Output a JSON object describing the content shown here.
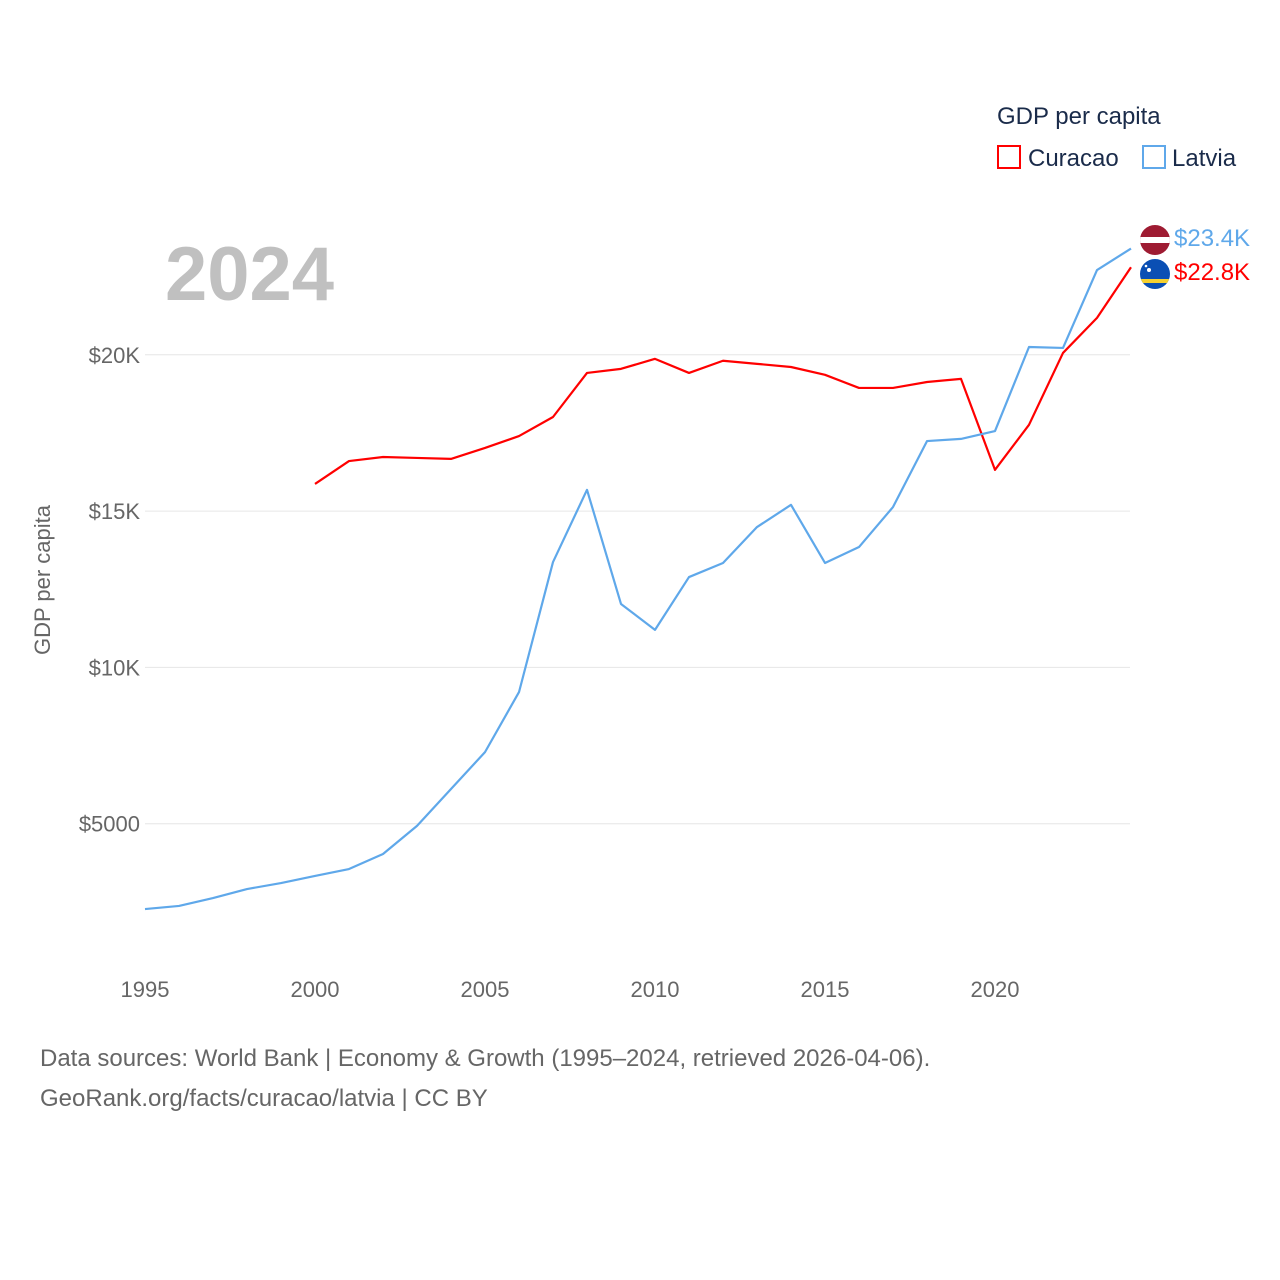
{
  "chart_data": {
    "type": "line",
    "year_label": "2024",
    "ylabel": "GDP per capita",
    "xlabel": "",
    "xlim": [
      1995,
      2024
    ],
    "ylim": [
      0,
      25000
    ],
    "grid": true,
    "y_ticks": [
      {
        "value": 5000,
        "label": "$5000"
      },
      {
        "value": 10000,
        "label": "$10K"
      },
      {
        "value": 15000,
        "label": "$15K"
      },
      {
        "value": 20000,
        "label": "$20K"
      }
    ],
    "x_ticks": [
      1995,
      2000,
      2005,
      2010,
      2015,
      2020
    ],
    "legend": {
      "title": "GDP per capita",
      "placement": "top-right"
    },
    "series": [
      {
        "name": "Curacao",
        "color": "#ff0000",
        "end_label": "$22.8K",
        "x": [
          2000,
          2001,
          2002,
          2003,
          2004,
          2005,
          2006,
          2007,
          2008,
          2009,
          2010,
          2011,
          2012,
          2013,
          2014,
          2015,
          2016,
          2017,
          2018,
          2019,
          2020,
          2021,
          2022,
          2023,
          2024
        ],
        "values": [
          15870,
          16600,
          16730,
          16700,
          16670,
          17020,
          17400,
          18010,
          19420,
          19550,
          19870,
          19420,
          19810,
          19710,
          19610,
          19360,
          18940,
          18940,
          19130,
          19230,
          16320,
          17760,
          20060,
          21180,
          22800
        ]
      },
      {
        "name": "Latvia",
        "color": "#5fa8ea",
        "end_label": "$23.4K",
        "x": [
          1995,
          1996,
          1997,
          1998,
          1999,
          2000,
          2001,
          2002,
          2003,
          2004,
          2005,
          2006,
          2007,
          2008,
          2009,
          2010,
          2011,
          2012,
          2013,
          2014,
          2015,
          2016,
          2017,
          2018,
          2019,
          2020,
          2021,
          2022,
          2023,
          2024
        ],
        "values": [
          2270,
          2370,
          2620,
          2910,
          3100,
          3330,
          3550,
          4030,
          4930,
          6110,
          7290,
          9210,
          13370,
          15680,
          12030,
          11200,
          12890,
          13340,
          14490,
          15200,
          13340,
          13850,
          15130,
          17240,
          17310,
          17560,
          20250,
          20220,
          22710,
          23400
        ]
      }
    ]
  },
  "footer": {
    "line1": "Data sources: World Bank | Economy & Growth (1995–2024, retrieved 2026-04-06).",
    "line2": "GeoRank.org/facts/curacao/latvia | CC BY"
  }
}
